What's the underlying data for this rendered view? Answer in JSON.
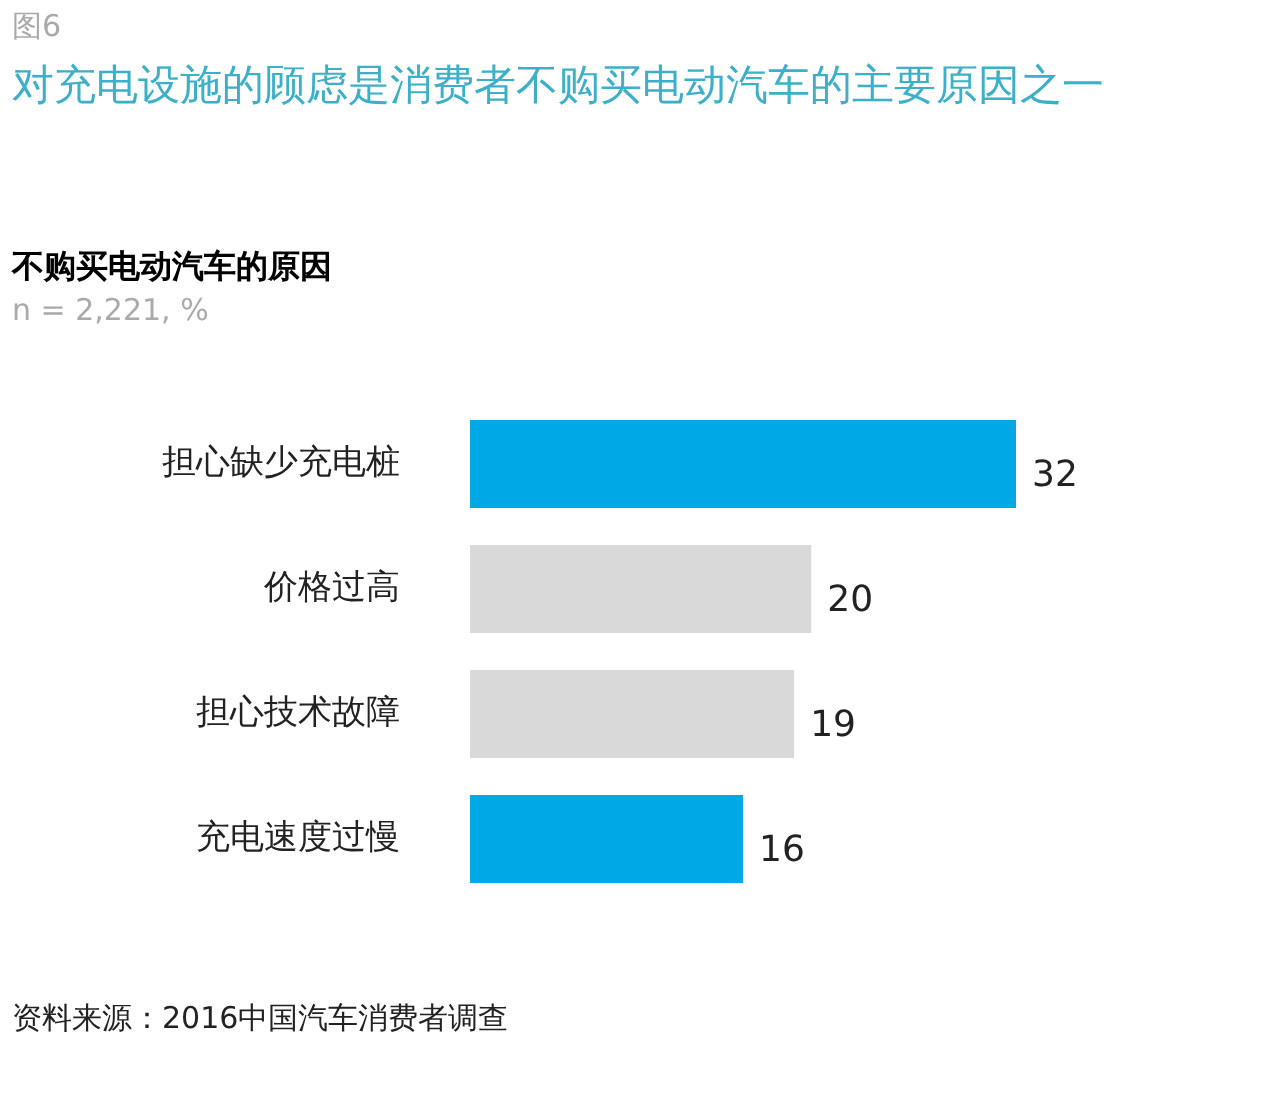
{
  "chart_data": {
    "type": "bar",
    "orientation": "horizontal",
    "title": "对充电设施的顾虑是消费者不购买电动汽车的主要原因之一",
    "subtitle": "不购买电动汽车的原因",
    "annotations": [
      "图6",
      "n = 2,221, %",
      "资料来源：2016中国汽车消费者调查"
    ],
    "categories": [
      "担心缺少充电桩",
      "价格过高",
      "担心技术故障",
      "充电速度过慢"
    ],
    "values": [
      32,
      20,
      19,
      16
    ],
    "colors": [
      "#00a9e6",
      "#d9d9d9",
      "#d9d9d9",
      "#00a9e6"
    ],
    "data_labels": true
  }
}
